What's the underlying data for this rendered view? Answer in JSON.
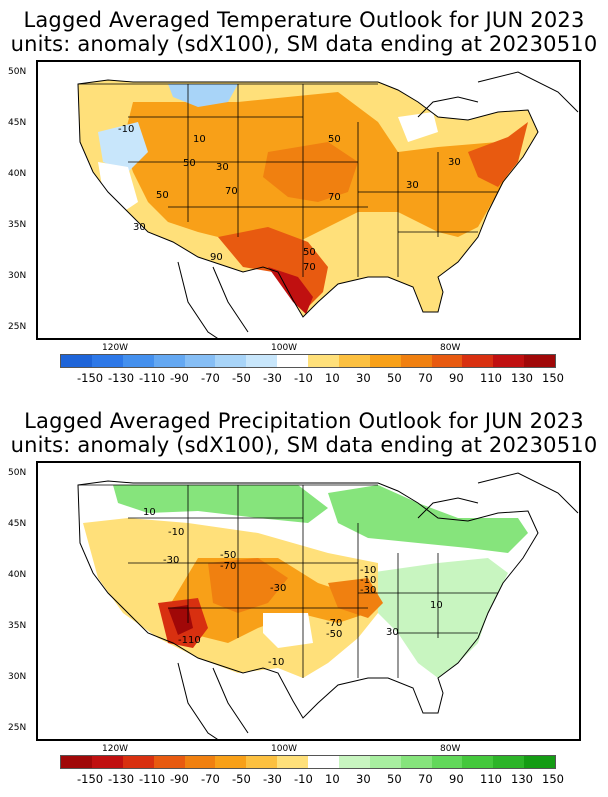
{
  "temp": {
    "title_line1": "Lagged Averaged Temperature Outlook for JUN 2023",
    "title_line2": "units: anomaly (sdX100), SM data ending at 20230510",
    "lat_labels": [
      "50N",
      "45N",
      "40N",
      "35N",
      "30N",
      "25N"
    ],
    "lon_labels": [
      "120W",
      "100W",
      "80W"
    ],
    "contour_labels": [
      "-10",
      "10",
      "50",
      "30",
      "50",
      "70",
      "70",
      "50",
      "30",
      "30",
      "30",
      "90",
      "50",
      "70"
    ],
    "colorbar_ticks": [
      "-150",
      "-130",
      "-110",
      "-90",
      "-70",
      "-50",
      "-30",
      "-10",
      "10",
      "30",
      "50",
      "70",
      "90",
      "110",
      "130",
      "150"
    ],
    "colorbar_colors": [
      "#1e64d8",
      "#2d78e8",
      "#4490ee",
      "#64a8f2",
      "#86bef5",
      "#a8d4f8",
      "#c8e6fb",
      "#ffffff",
      "#ffe07a",
      "#fcc040",
      "#f8a018",
      "#f08010",
      "#e85a10",
      "#d83010",
      "#c01010",
      "#a00808"
    ]
  },
  "precip": {
    "title_line1": "Lagged Averaged Precipitation Outlook for JUN 2023",
    "title_line2": "units: anomaly (sdX100), SM data ending at 20230510",
    "lat_labels": [
      "50N",
      "45N",
      "40N",
      "35N",
      "30N",
      "25N"
    ],
    "lon_labels": [
      "120W",
      "100W",
      "80W"
    ],
    "contour_labels": [
      "10",
      "-10",
      "-30",
      "-50",
      "-70",
      "-30",
      "-110",
      "-10",
      "-70",
      "-50",
      "-10",
      "-10",
      "-30",
      "10",
      "30"
    ],
    "colorbar_ticks": [
      "-150",
      "-130",
      "-110",
      "-90",
      "-70",
      "-50",
      "-30",
      "-10",
      "10",
      "30",
      "50",
      "70",
      "90",
      "110",
      "130",
      "150"
    ],
    "colorbar_colors": [
      "#a00808",
      "#c01010",
      "#d83010",
      "#e85a10",
      "#f08010",
      "#f8a018",
      "#fcc040",
      "#ffe07a",
      "#ffffff",
      "#c8f5c0",
      "#a8eea0",
      "#86e47c",
      "#62d85a",
      "#44c83c",
      "#2cb428",
      "#149c14"
    ]
  }
}
